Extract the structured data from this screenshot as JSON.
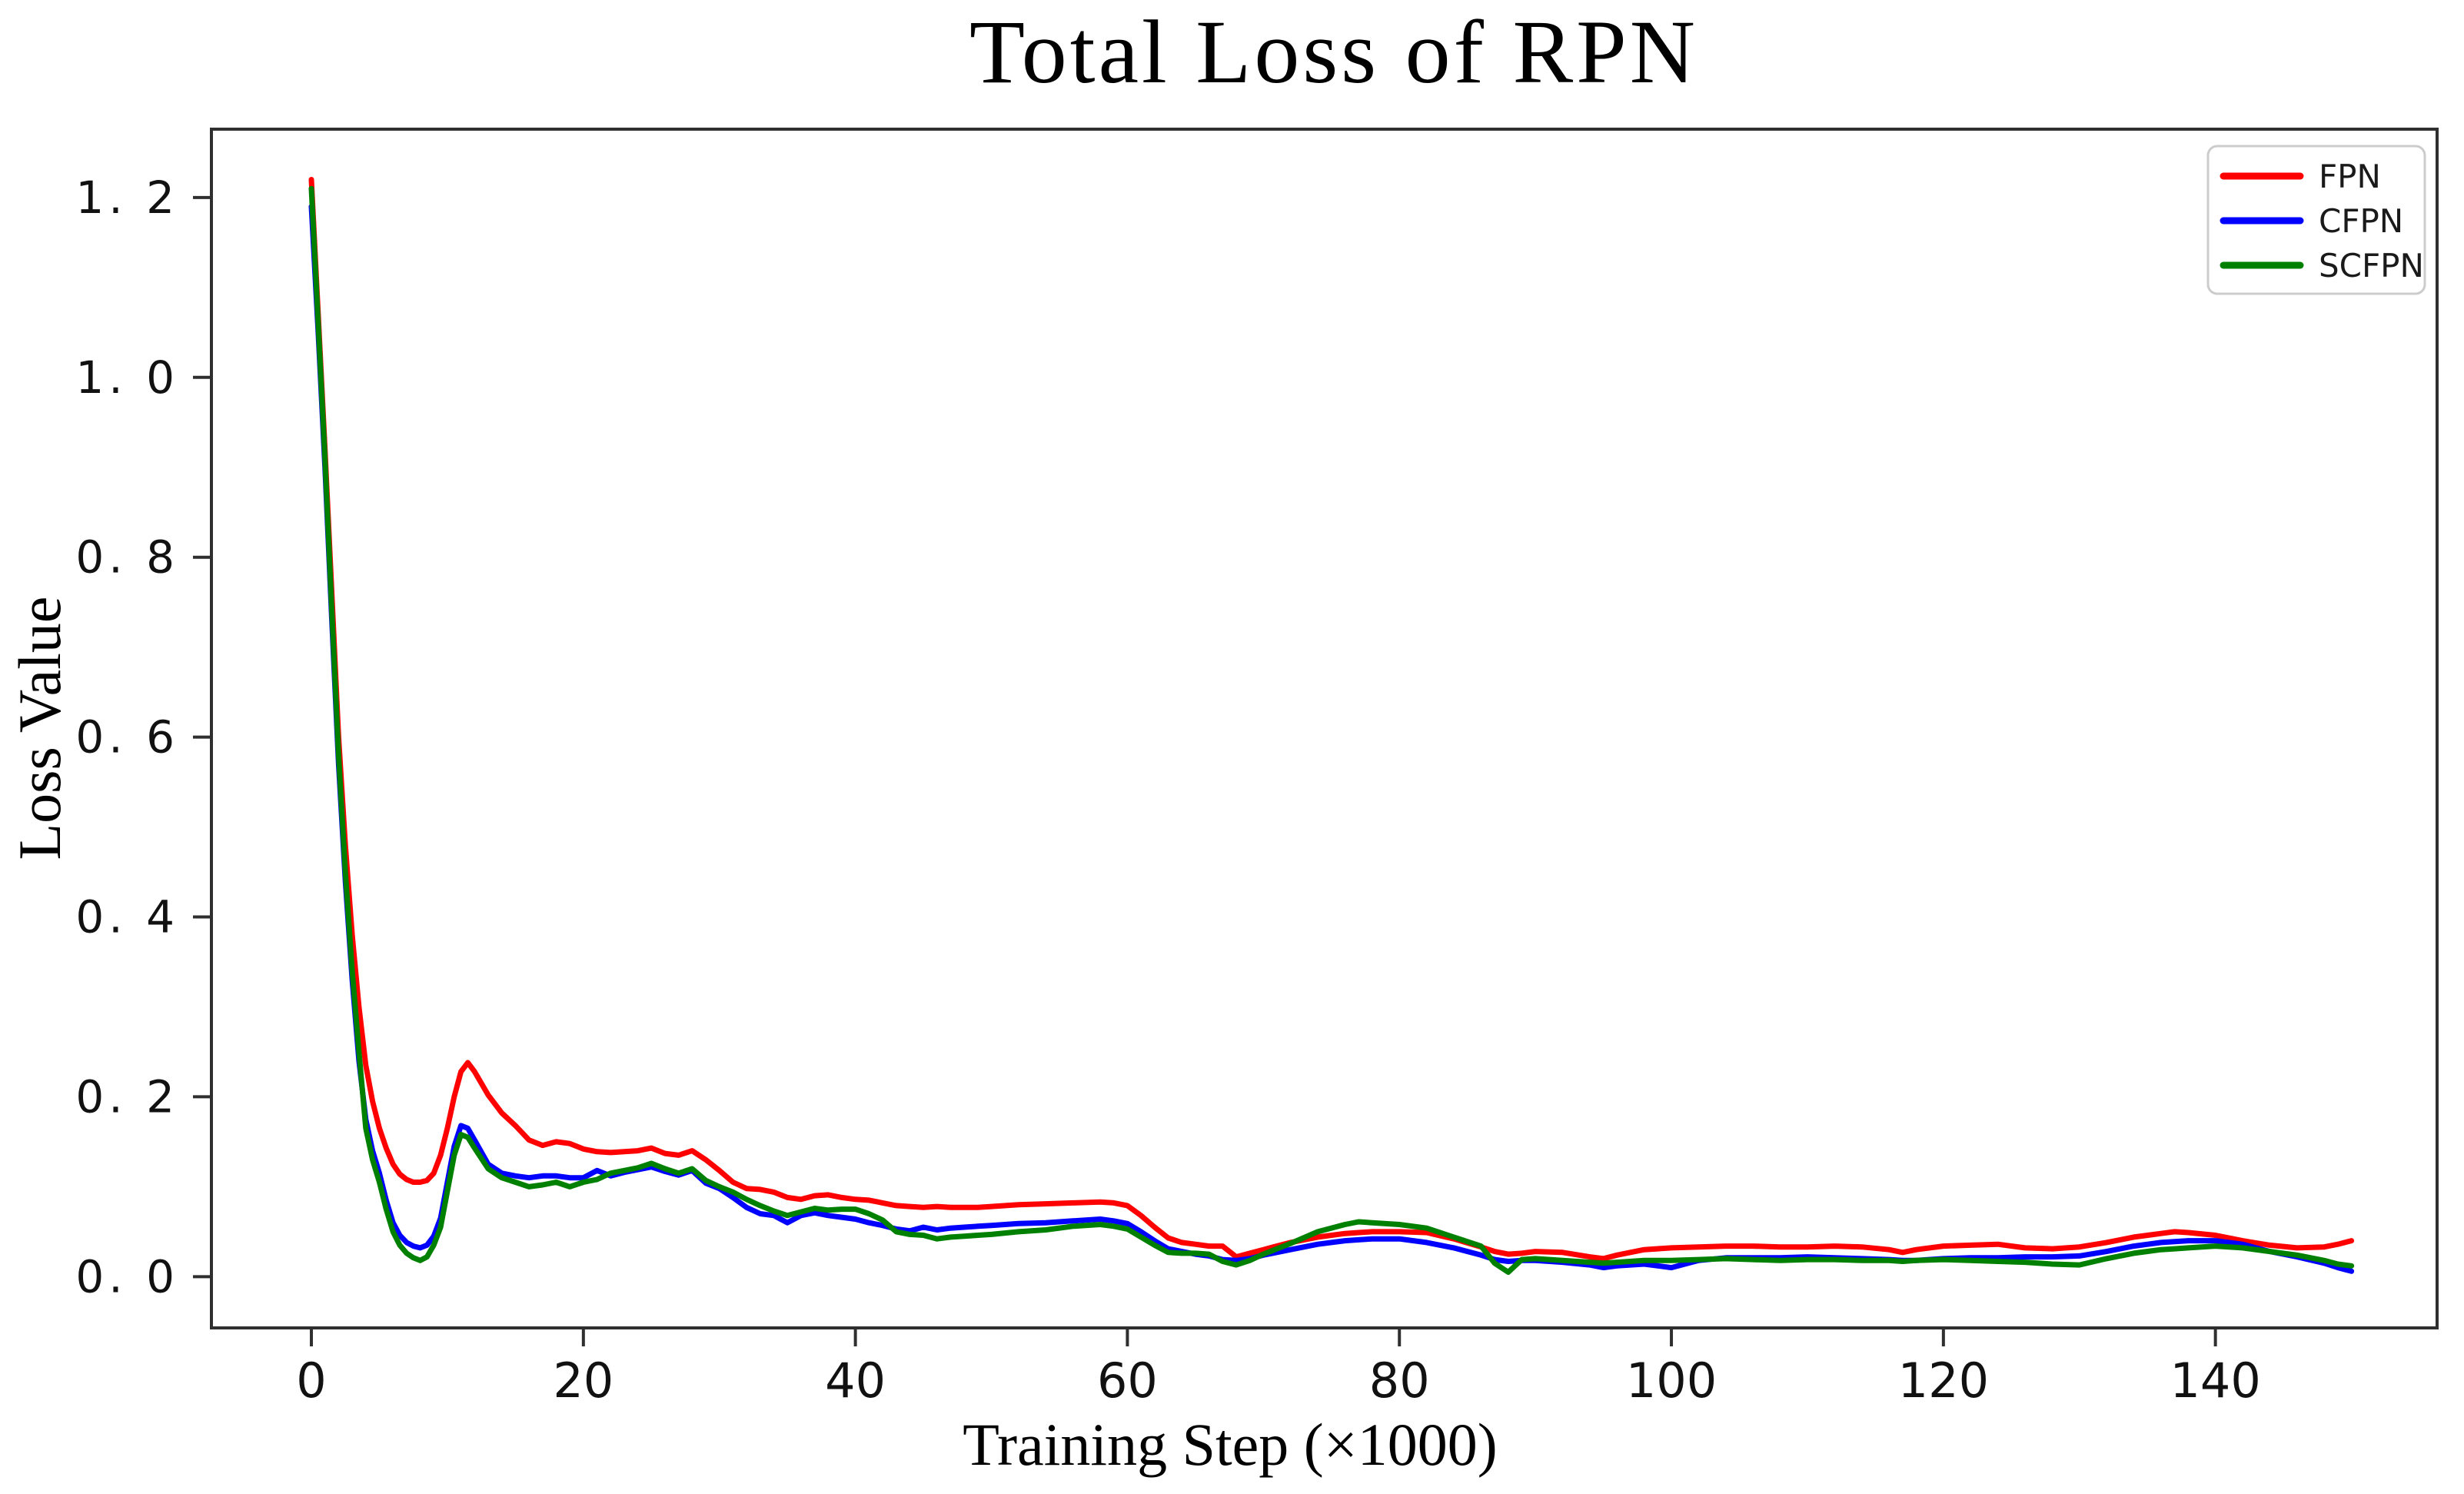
{
  "figure": {
    "title": "Total Loss of RPN",
    "xlabel": "Training Step (×1000)",
    "ylabel": "Loss Value"
  },
  "chart_data": {
    "type": "line",
    "title": "Total Loss of RPN",
    "xlabel": "Training Step (×1000)",
    "ylabel": "Loss Value",
    "grid": false,
    "legend_position": "upper right",
    "xlim": [
      -7.35,
      156.3
    ],
    "ylim": [
      -0.057,
      1.276
    ],
    "x_ticks": [
      0,
      20,
      40,
      60,
      80,
      100,
      120,
      140
    ],
    "x_tick_labels": [
      "0",
      "20",
      "40",
      "60",
      "80",
      "100",
      "120",
      "140"
    ],
    "y_ticks": [
      0.0,
      0.2,
      0.4,
      0.6,
      0.8,
      1.0,
      1.2
    ],
    "y_tick_labels": [
      "0. 0",
      "0. 2",
      "0. 4",
      "0. 6",
      "0. 8",
      "1. 0",
      "1. 2"
    ],
    "x": [
      0,
      0.5,
      1,
      1.5,
      2,
      2.5,
      3,
      3.5,
      4,
      4.5,
      5,
      5.5,
      6,
      6.5,
      7,
      7.5,
      8,
      8.5,
      9,
      9.5,
      10,
      10.5,
      11,
      11.5,
      12,
      13,
      14,
      15,
      16,
      17,
      18,
      19,
      20,
      21,
      22,
      23,
      24,
      25,
      26,
      27,
      28,
      29,
      30,
      31,
      32,
      33,
      34,
      35,
      36,
      37,
      38,
      39,
      40,
      41,
      42,
      43,
      44,
      45,
      46,
      47,
      48,
      49,
      50,
      52,
      54,
      56,
      58,
      59,
      60,
      61,
      62,
      63,
      64,
      65,
      66,
      67,
      68,
      69,
      70,
      72,
      74,
      76,
      77,
      78,
      80,
      82,
      84,
      86,
      87,
      88,
      89,
      90,
      92,
      94,
      95,
      96,
      98,
      100,
      102,
      104,
      106,
      108,
      110,
      112,
      114,
      116,
      117,
      118,
      120,
      122,
      124,
      126,
      128,
      130,
      132,
      134,
      136,
      137,
      138,
      140,
      142,
      144,
      146,
      148,
      149,
      150
    ],
    "series": [
      {
        "name": "FPN",
        "color": "#ff0000",
        "values": [
          1.22,
          1.07,
          0.92,
          0.76,
          0.6,
          0.48,
          0.38,
          0.3,
          0.235,
          0.195,
          0.165,
          0.143,
          0.125,
          0.114,
          0.108,
          0.105,
          0.105,
          0.107,
          0.115,
          0.135,
          0.165,
          0.2,
          0.228,
          0.238,
          0.228,
          0.202,
          0.182,
          0.168,
          0.152,
          0.146,
          0.15,
          0.148,
          0.142,
          0.139,
          0.138,
          0.139,
          0.14,
          0.143,
          0.137,
          0.135,
          0.14,
          0.13,
          0.118,
          0.105,
          0.098,
          0.097,
          0.094,
          0.088,
          0.086,
          0.09,
          0.091,
          0.088,
          0.086,
          0.085,
          0.082,
          0.079,
          0.078,
          0.077,
          0.078,
          0.077,
          0.077,
          0.077,
          0.078,
          0.08,
          0.081,
          0.082,
          0.083,
          0.082,
          0.079,
          0.068,
          0.055,
          0.043,
          0.038,
          0.036,
          0.034,
          0.034,
          0.022,
          0.026,
          0.03,
          0.038,
          0.044,
          0.048,
          0.049,
          0.05,
          0.05,
          0.049,
          0.042,
          0.033,
          0.028,
          0.025,
          0.026,
          0.028,
          0.027,
          0.022,
          0.02,
          0.024,
          0.03,
          0.032,
          0.033,
          0.034,
          0.034,
          0.033,
          0.033,
          0.034,
          0.033,
          0.03,
          0.027,
          0.03,
          0.034,
          0.035,
          0.036,
          0.032,
          0.031,
          0.033,
          0.038,
          0.044,
          0.048,
          0.05,
          0.049,
          0.046,
          0.04,
          0.035,
          0.032,
          0.033,
          0.036,
          0.04
        ]
      },
      {
        "name": "CFPN",
        "color": "#0000ff",
        "values": [
          1.19,
          1.05,
          0.9,
          0.73,
          0.57,
          0.44,
          0.33,
          0.24,
          0.175,
          0.14,
          0.115,
          0.085,
          0.06,
          0.046,
          0.038,
          0.034,
          0.032,
          0.035,
          0.045,
          0.065,
          0.105,
          0.145,
          0.168,
          0.165,
          0.152,
          0.125,
          0.115,
          0.112,
          0.11,
          0.112,
          0.112,
          0.11,
          0.11,
          0.118,
          0.112,
          0.116,
          0.119,
          0.122,
          0.117,
          0.113,
          0.118,
          0.104,
          0.098,
          0.088,
          0.077,
          0.07,
          0.068,
          0.06,
          0.068,
          0.071,
          0.068,
          0.066,
          0.064,
          0.06,
          0.057,
          0.053,
          0.051,
          0.055,
          0.052,
          0.054,
          0.055,
          0.056,
          0.057,
          0.059,
          0.06,
          0.062,
          0.064,
          0.062,
          0.059,
          0.05,
          0.04,
          0.031,
          0.028,
          0.025,
          0.023,
          0.019,
          0.018,
          0.02,
          0.024,
          0.03,
          0.036,
          0.04,
          0.041,
          0.042,
          0.042,
          0.038,
          0.032,
          0.024,
          0.019,
          0.017,
          0.018,
          0.018,
          0.016,
          0.013,
          0.01,
          0.012,
          0.014,
          0.01,
          0.018,
          0.021,
          0.021,
          0.021,
          0.022,
          0.021,
          0.02,
          0.019,
          0.018,
          0.018,
          0.02,
          0.021,
          0.021,
          0.022,
          0.022,
          0.023,
          0.028,
          0.034,
          0.038,
          0.039,
          0.04,
          0.04,
          0.036,
          0.028,
          0.022,
          0.015,
          0.01,
          0.006
        ]
      },
      {
        "name": "SCFPN",
        "color": "#008000",
        "values": [
          1.21,
          1.06,
          0.91,
          0.74,
          0.58,
          0.45,
          0.34,
          0.25,
          0.165,
          0.13,
          0.105,
          0.075,
          0.05,
          0.035,
          0.026,
          0.021,
          0.018,
          0.022,
          0.035,
          0.055,
          0.095,
          0.135,
          0.158,
          0.155,
          0.143,
          0.12,
          0.11,
          0.105,
          0.1,
          0.102,
          0.105,
          0.1,
          0.105,
          0.108,
          0.115,
          0.118,
          0.121,
          0.126,
          0.12,
          0.115,
          0.12,
          0.107,
          0.1,
          0.094,
          0.086,
          0.079,
          0.073,
          0.068,
          0.072,
          0.076,
          0.074,
          0.075,
          0.075,
          0.07,
          0.063,
          0.05,
          0.047,
          0.046,
          0.042,
          0.044,
          0.045,
          0.046,
          0.047,
          0.05,
          0.052,
          0.056,
          0.058,
          0.056,
          0.053,
          0.044,
          0.035,
          0.027,
          0.026,
          0.026,
          0.025,
          0.017,
          0.013,
          0.018,
          0.025,
          0.037,
          0.05,
          0.058,
          0.061,
          0.06,
          0.058,
          0.054,
          0.044,
          0.034,
          0.015,
          0.005,
          0.019,
          0.02,
          0.018,
          0.016,
          0.015,
          0.016,
          0.018,
          0.018,
          0.019,
          0.02,
          0.019,
          0.018,
          0.019,
          0.019,
          0.018,
          0.018,
          0.017,
          0.018,
          0.019,
          0.018,
          0.017,
          0.016,
          0.014,
          0.013,
          0.02,
          0.026,
          0.03,
          0.031,
          0.032,
          0.034,
          0.032,
          0.028,
          0.024,
          0.018,
          0.014,
          0.012
        ]
      }
    ]
  }
}
